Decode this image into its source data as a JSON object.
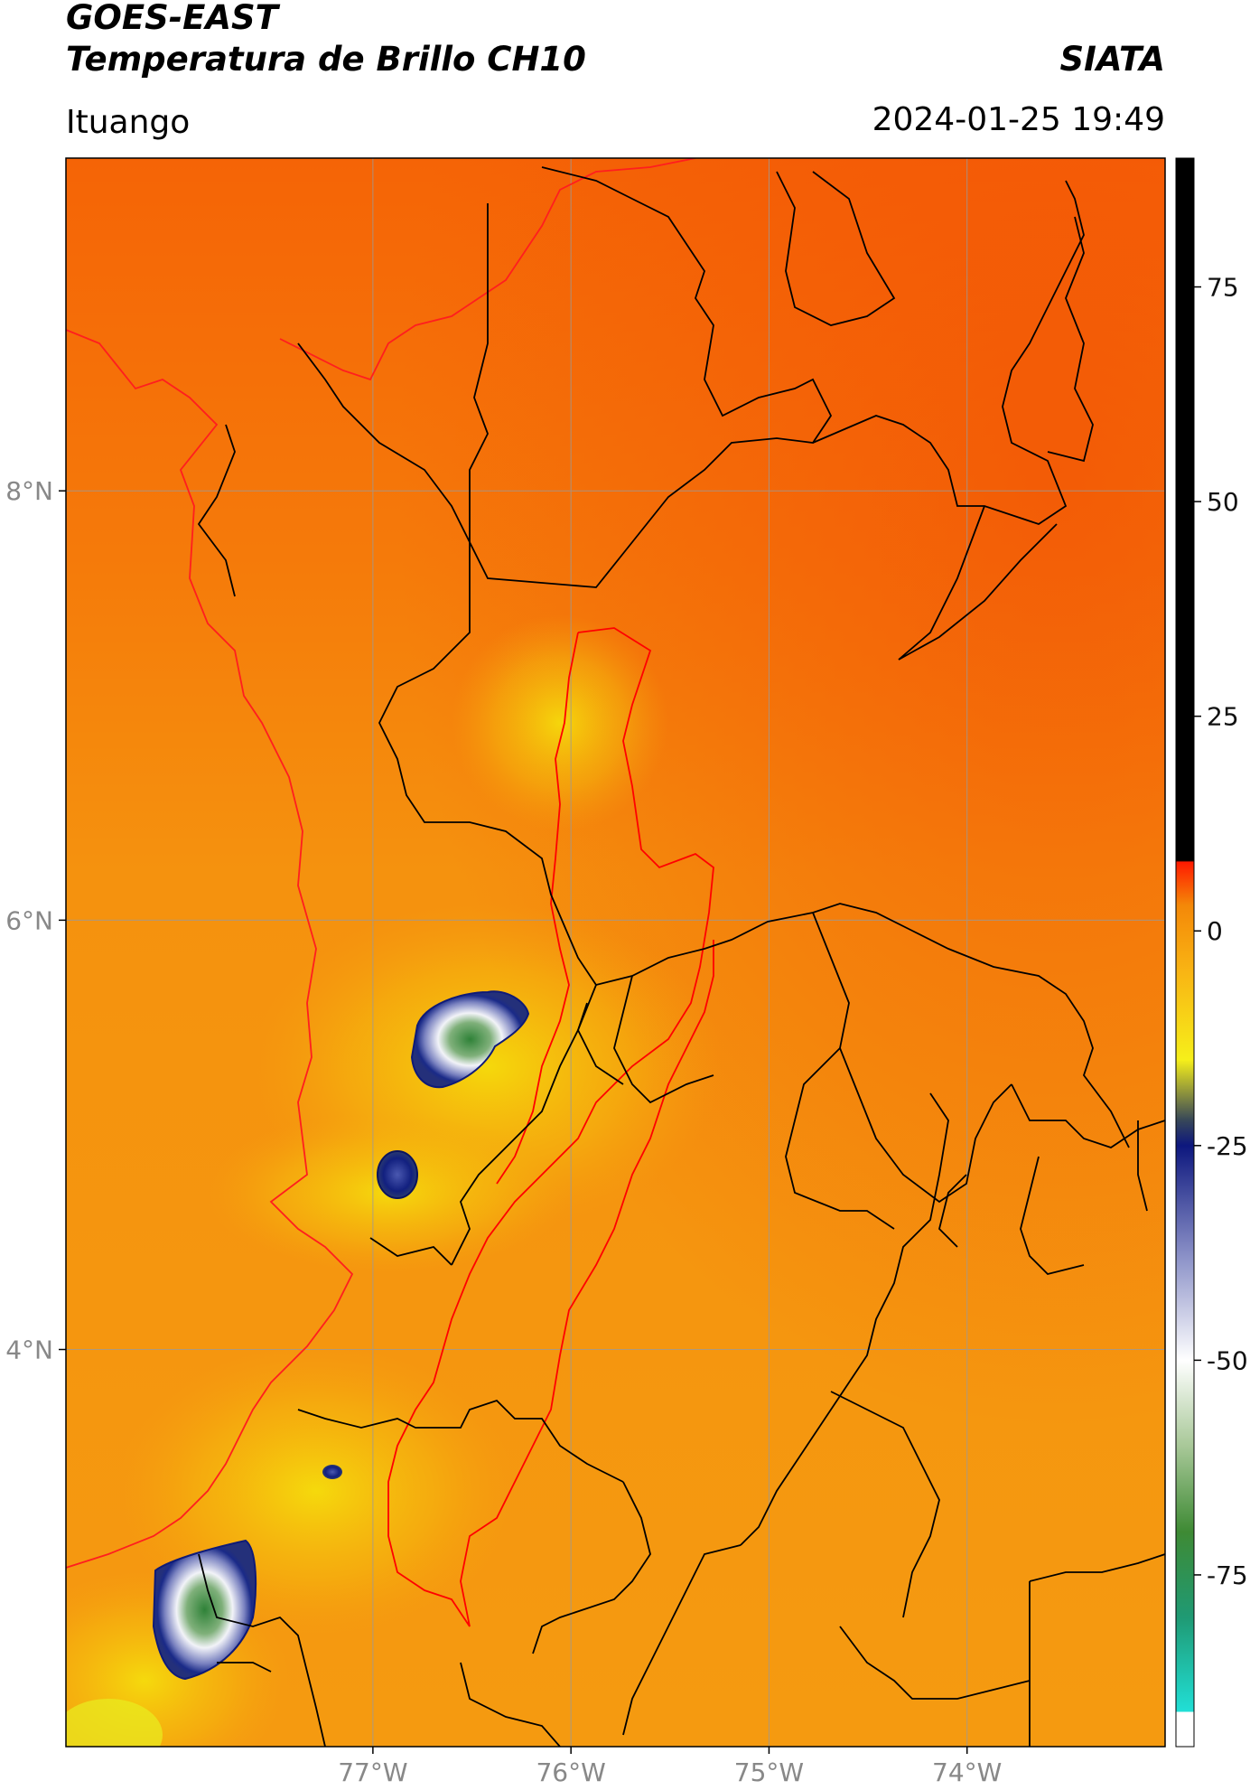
{
  "header": {
    "title_line1": "GOES-EAST",
    "title_line2": "Temperatura de Brillo CH10",
    "brand": "SIATA",
    "region": "Ituango",
    "datetime": "2024-01-25 19:49"
  },
  "map": {
    "lat_range": [
      2.15,
      9.55
    ],
    "lon_range": [
      -78.55,
      -73.0
    ],
    "lat_ticks": [
      {
        "value": 8,
        "label": "8°N"
      },
      {
        "value": 6,
        "label": "6°N"
      },
      {
        "value": 4,
        "label": "4°N"
      }
    ],
    "lon_ticks": [
      {
        "value": -77,
        "label": "77°W"
      },
      {
        "value": -76,
        "label": "76°W"
      },
      {
        "value": -75,
        "label": "75°W"
      },
      {
        "value": -74,
        "label": "74°W"
      }
    ],
    "colors": {
      "background_orange": "#f5920e",
      "warm_north": "#f56a06",
      "cold_yellow": "#f5e50c",
      "cloud_blue": "#1c2a8c",
      "cloud_white": "#eef0f8",
      "cloud_green": "#3d8a3a",
      "admin_border": "#000000",
      "basin_border": "#ff0000",
      "coastline": "#ff1e1e"
    },
    "cold_cloud_tops": [
      {
        "lon": -76.57,
        "lat": 5.22,
        "min_temp": -72
      },
      {
        "lon": -76.85,
        "lat": 4.41,
        "min_temp": -30
      },
      {
        "lon": -77.2,
        "lat": 2.98,
        "min_temp": -28
      },
      {
        "lon": -77.74,
        "lat": 2.53,
        "min_temp": -78
      }
    ]
  },
  "colorbar": {
    "range": [
      -95,
      90
    ],
    "ticks": [
      {
        "value": 75,
        "label": "75"
      },
      {
        "value": 50,
        "label": "50"
      },
      {
        "value": 25,
        "label": "25"
      },
      {
        "value": 0,
        "label": "0"
      },
      {
        "value": -25,
        "label": "-25"
      },
      {
        "value": -50,
        "label": "-50"
      },
      {
        "value": -75,
        "label": "-75"
      }
    ],
    "stops": [
      {
        "value": -95,
        "color": "#ffffff"
      },
      {
        "value": -91,
        "color": "#ffffff"
      },
      {
        "value": -90.9,
        "color": "#21dfd6"
      },
      {
        "value": -80,
        "color": "#1f9a74"
      },
      {
        "value": -70,
        "color": "#3e8a34"
      },
      {
        "value": -60,
        "color": "#a8c898"
      },
      {
        "value": -50,
        "color": "#ffffff"
      },
      {
        "value": -38,
        "color": "#8c92c8"
      },
      {
        "value": -25,
        "color": "#0d177e"
      },
      {
        "value": -22,
        "color": "#384858"
      },
      {
        "value": -15,
        "color": "#f6ef1a"
      },
      {
        "value": -5,
        "color": "#f9b614"
      },
      {
        "value": 3,
        "color": "#f48808"
      },
      {
        "value": 8,
        "color": "#ff1a00"
      },
      {
        "value": 8.2,
        "color": "#000000"
      },
      {
        "value": 90,
        "color": "#000000"
      }
    ]
  }
}
